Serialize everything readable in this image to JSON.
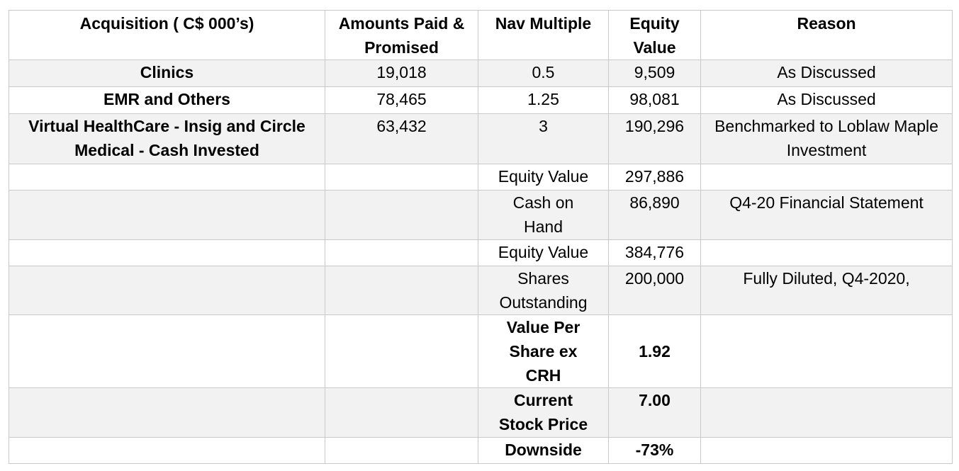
{
  "table": {
    "headers": [
      "Acquisition ( C$ 000’s)",
      "Amounts Paid & Promised",
      "Nav Multiple",
      "Equity Value",
      "Reason"
    ],
    "rows": [
      [
        "Clinics",
        "19,018",
        "0.5",
        "9,509",
        "As Discussed"
      ],
      [
        "EMR and Others",
        "78,465",
        "1.25",
        "98,081",
        "As Discussed"
      ],
      [
        "Virtual HealthCare - Insig and Circle Medical - Cash Invested",
        "63,432",
        "3",
        "190,296",
        "Benchmarked to Loblaw Maple Investment"
      ],
      [
        "",
        "",
        "Equity Value",
        "297,886",
        ""
      ],
      [
        "",
        "",
        "Cash on Hand",
        "86,890",
        "Q4-20 Financial Statement"
      ],
      [
        "",
        "",
        "Equity Value",
        "384,776",
        ""
      ],
      [
        "",
        "",
        "Shares Outstanding",
        "200,000",
        "Fully Diluted, Q4-2020,"
      ],
      [
        "",
        "",
        "Value Per Share ex CRH",
        "1.92",
        ""
      ],
      [
        "",
        "",
        "Current Stock Price",
        "7.00",
        ""
      ],
      [
        "",
        "",
        "Downside",
        "-73%",
        ""
      ]
    ]
  }
}
